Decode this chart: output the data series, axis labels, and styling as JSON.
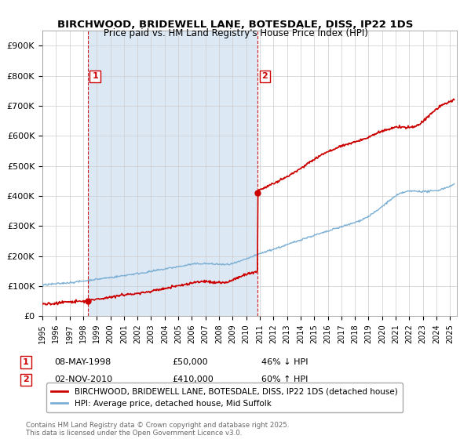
{
  "title": "BIRCHWOOD, BRIDEWELL LANE, BOTESDALE, DISS, IP22 1DS",
  "subtitle": "Price paid vs. HM Land Registry's House Price Index (HPI)",
  "xlim_start": 1995.0,
  "xlim_end": 2025.5,
  "ylim": [
    0,
    950000
  ],
  "yticks": [
    0,
    100000,
    200000,
    300000,
    400000,
    500000,
    600000,
    700000,
    800000,
    900000
  ],
  "ytick_labels": [
    "£0",
    "£100K",
    "£200K",
    "£300K",
    "£400K",
    "£500K",
    "£600K",
    "£700K",
    "£800K",
    "£900K"
  ],
  "sale1_date": 1998.355,
  "sale1_price": 50000,
  "sale1_label": "1",
  "sale1_text": "08-MAY-1998",
  "sale1_amount": "£50,000",
  "sale1_hpi": "46% ↓ HPI",
  "sale2_date": 2010.836,
  "sale2_price": 410000,
  "sale2_label": "2",
  "sale2_text": "02-NOV-2010",
  "sale2_amount": "£410,000",
  "sale2_hpi": "60% ↑ HPI",
  "line1_color": "#cc0000",
  "line2_color": "#7bafd4",
  "vline_color": "#cc0000",
  "shade_color": "#dde8f5",
  "background_color": "#ffffff",
  "grid_color": "#cccccc",
  "legend1_label": "BIRCHWOOD, BRIDEWELL LANE, BOTESDALE, DISS, IP22 1DS (detached house)",
  "legend2_label": "HPI: Average price, detached house, Mid Suffolk",
  "footer": "Contains HM Land Registry data © Crown copyright and database right 2025.\nThis data is licensed under the Open Government Licence v3.0.",
  "xtick_years": [
    1995,
    1996,
    1997,
    1998,
    1999,
    2000,
    2001,
    2002,
    2003,
    2004,
    2005,
    2006,
    2007,
    2008,
    2009,
    2010,
    2011,
    2012,
    2013,
    2014,
    2015,
    2016,
    2017,
    2018,
    2019,
    2020,
    2021,
    2022,
    2023,
    2024,
    2025
  ]
}
